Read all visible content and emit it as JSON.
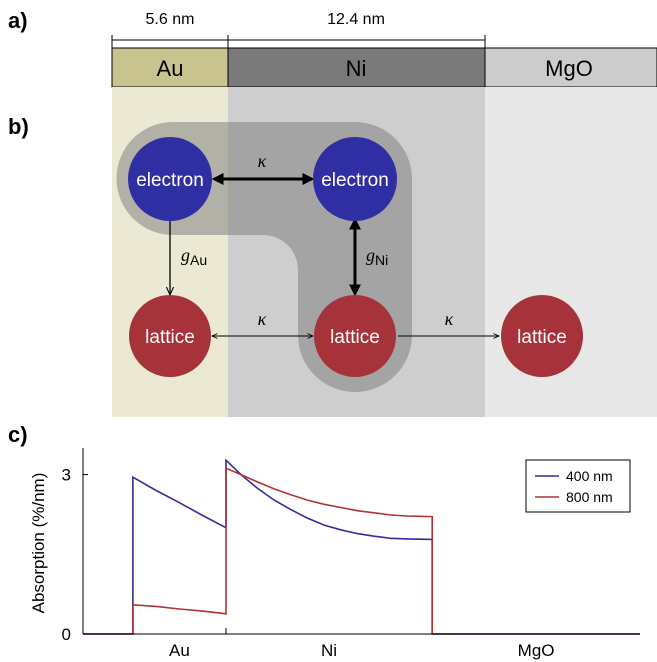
{
  "panels": {
    "a": "a)",
    "b": "b)",
    "c": "c)"
  },
  "layers": {
    "au": {
      "label": "Au",
      "thickness": "5.6 nm"
    },
    "ni": {
      "label": "Ni",
      "thickness": "12.4 nm"
    },
    "mgo": {
      "label": "MgO"
    }
  },
  "colors": {
    "au_bar": "#c9c48f",
    "au_bg": "#ebe9d4",
    "ni_bar": "#7a7a7a",
    "ni_bg": "#cecece",
    "mgo_bar": "#cccccc",
    "mgo_bg": "#e8e8e8",
    "electron": "#2f2fa3",
    "lattice": "#a6333a",
    "series_400": "#2f2f9a",
    "series_800": "#b03333"
  },
  "nodes": {
    "electron_au": "electron",
    "electron_ni": "electron",
    "lattice_au": "lattice",
    "lattice_ni": "lattice",
    "lattice_mgo": "lattice"
  },
  "couplings": {
    "kappa_electron": "κ",
    "kappa_lattice_au_ni": "κ",
    "kappa_lattice_ni_mgo": "κ",
    "g_au": {
      "symbol": "g",
      "sub": "Au"
    },
    "g_ni": {
      "symbol": "g",
      "sub": "Ni"
    }
  },
  "chart_data": {
    "type": "line",
    "ylabel": "Absorption (%/nm)",
    "xlabel": "",
    "yticks": [
      "0",
      "3"
    ],
    "ylim": [
      0,
      3.5
    ],
    "regions": [
      "Au",
      "Ni",
      "MgO"
    ],
    "x_unit": "nm",
    "boundaries": [
      0,
      5.6,
      18.0
    ],
    "xlim": [
      -3.0,
      30.5
    ],
    "legend_position": "top-right",
    "series": [
      {
        "name": "400 nm",
        "color_key": "series_400",
        "points": [
          [
            -3.0,
            0
          ],
          [
            0,
            0
          ],
          [
            0,
            2.95
          ],
          [
            1.4,
            2.7
          ],
          [
            2.8,
            2.47
          ],
          [
            4.2,
            2.23
          ],
          [
            5.6,
            2.0
          ],
          [
            5.6,
            3.27
          ],
          [
            6.5,
            3.0
          ],
          [
            7.5,
            2.74
          ],
          [
            8.5,
            2.52
          ],
          [
            9.5,
            2.34
          ],
          [
            10.5,
            2.18
          ],
          [
            11.5,
            2.05
          ],
          [
            12.5,
            1.96
          ],
          [
            13.5,
            1.89
          ],
          [
            14.5,
            1.84
          ],
          [
            15.5,
            1.8
          ],
          [
            16.5,
            1.79
          ],
          [
            18.0,
            1.78
          ],
          [
            18.0,
            0
          ],
          [
            30.5,
            0
          ]
        ]
      },
      {
        "name": "800 nm",
        "color_key": "series_800",
        "points": [
          [
            -3.0,
            0
          ],
          [
            0,
            0
          ],
          [
            0,
            0.55
          ],
          [
            1.4,
            0.52
          ],
          [
            2.8,
            0.47
          ],
          [
            4.2,
            0.43
          ],
          [
            5.6,
            0.38
          ],
          [
            5.6,
            3.12
          ],
          [
            6.5,
            3.0
          ],
          [
            7.5,
            2.86
          ],
          [
            8.5,
            2.73
          ],
          [
            9.5,
            2.62
          ],
          [
            10.5,
            2.52
          ],
          [
            11.5,
            2.44
          ],
          [
            12.5,
            2.38
          ],
          [
            13.5,
            2.32
          ],
          [
            14.5,
            2.28
          ],
          [
            15.5,
            2.24
          ],
          [
            16.5,
            2.22
          ],
          [
            18.0,
            2.21
          ],
          [
            18.0,
            0
          ],
          [
            30.5,
            0
          ]
        ]
      }
    ]
  }
}
